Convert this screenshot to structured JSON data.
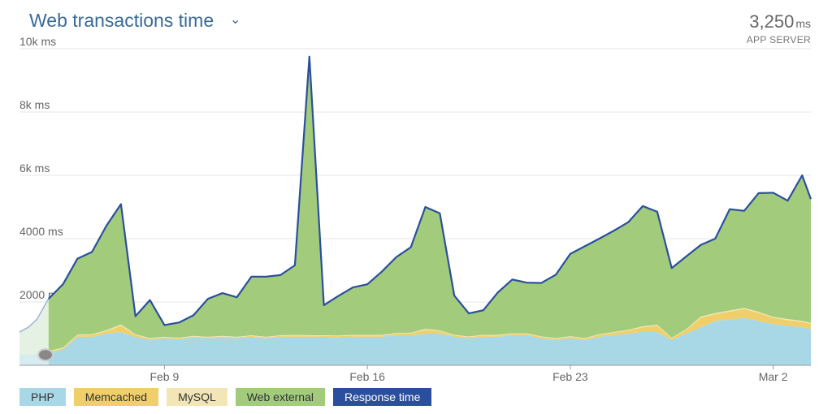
{
  "header": {
    "title": "Web transactions time",
    "caret": "⌄",
    "summary_value": "3,250",
    "summary_unit": "ms",
    "summary_label": "APP SERVER"
  },
  "colors": {
    "php": "#a8d8e6",
    "memcached": "#f0cf6a",
    "mysql": "#f3e6b6",
    "web_external": "#a2cc7c",
    "response_time": "#2b4f9e",
    "grid": "#e6e6e6"
  },
  "chart_data": {
    "type": "area",
    "title": "Web transactions time",
    "ylabel": "",
    "xlabel": "",
    "ylim": [
      0,
      10000
    ],
    "y_ticks": [
      {
        "value": 2000,
        "label": "2000 ms"
      },
      {
        "value": 4000,
        "label": "4000 ms"
      },
      {
        "value": 6000,
        "label": "6k ms"
      },
      {
        "value": 8000,
        "label": "8k ms"
      },
      {
        "value": 10000,
        "label": "10k ms"
      }
    ],
    "x_ticks": [
      {
        "value": 9,
        "label": "Feb 9"
      },
      {
        "value": 16,
        "label": "Feb 16"
      },
      {
        "value": 23,
        "label": "Feb 23"
      },
      {
        "value": 30,
        "label": "Mar 2"
      }
    ],
    "stacked": true,
    "grid": true,
    "legend_position": "bottom",
    "series": [
      {
        "name": "PHP",
        "color_key": "php",
        "points": [
          [
            5.0,
            400
          ],
          [
            5.5,
            500
          ],
          [
            6.0,
            900
          ],
          [
            6.5,
            900
          ],
          [
            7.0,
            1000
          ],
          [
            7.5,
            1050
          ],
          [
            8.0,
            900
          ],
          [
            8.5,
            800
          ],
          [
            9.0,
            850
          ],
          [
            9.5,
            820
          ],
          [
            10.0,
            880
          ],
          [
            10.5,
            850
          ],
          [
            11.0,
            880
          ],
          [
            11.5,
            850
          ],
          [
            12.0,
            900
          ],
          [
            12.5,
            850
          ],
          [
            13.0,
            900
          ],
          [
            13.5,
            900
          ],
          [
            14.0,
            900
          ],
          [
            14.5,
            900
          ],
          [
            15.0,
            880
          ],
          [
            15.5,
            900
          ],
          [
            16.0,
            900
          ],
          [
            16.5,
            900
          ],
          [
            17.0,
            950
          ],
          [
            17.5,
            950
          ],
          [
            18.0,
            1000
          ],
          [
            18.5,
            1000
          ],
          [
            19.0,
            900
          ],
          [
            19.5,
            850
          ],
          [
            20.0,
            900
          ],
          [
            20.5,
            900
          ],
          [
            21.0,
            950
          ],
          [
            21.5,
            950
          ],
          [
            22.0,
            850
          ],
          [
            22.5,
            800
          ],
          [
            23.0,
            850
          ],
          [
            23.5,
            800
          ],
          [
            24.0,
            900
          ],
          [
            24.5,
            950
          ],
          [
            25.0,
            1000
          ],
          [
            25.5,
            1050
          ],
          [
            26.0,
            1050
          ],
          [
            26.5,
            800
          ],
          [
            27.0,
            1000
          ],
          [
            27.5,
            1200
          ],
          [
            28.0,
            1400
          ],
          [
            28.5,
            1450
          ],
          [
            29.0,
            1500
          ],
          [
            29.5,
            1400
          ],
          [
            30.0,
            1300
          ],
          [
            30.5,
            1250
          ],
          [
            31.0,
            1200
          ],
          [
            31.3,
            1150
          ]
        ]
      },
      {
        "name": "Memcached",
        "color_key": "memcached",
        "points": [
          [
            5.0,
            30
          ],
          [
            5.5,
            40
          ],
          [
            6.0,
            50
          ],
          [
            6.5,
            60
          ],
          [
            7.0,
            80
          ],
          [
            7.5,
            200
          ],
          [
            8.0,
            60
          ],
          [
            8.5,
            40
          ],
          [
            9.0,
            30
          ],
          [
            9.5,
            30
          ],
          [
            10.0,
            30
          ],
          [
            10.5,
            30
          ],
          [
            11.0,
            30
          ],
          [
            11.5,
            30
          ],
          [
            12.0,
            30
          ],
          [
            12.5,
            30
          ],
          [
            13.0,
            30
          ],
          [
            13.5,
            40
          ],
          [
            14.0,
            30
          ],
          [
            14.5,
            30
          ],
          [
            15.0,
            40
          ],
          [
            15.5,
            40
          ],
          [
            16.0,
            40
          ],
          [
            16.5,
            40
          ],
          [
            17.0,
            50
          ],
          [
            17.5,
            60
          ],
          [
            18.0,
            120
          ],
          [
            18.5,
            80
          ],
          [
            19.0,
            40
          ],
          [
            19.5,
            40
          ],
          [
            20.0,
            40
          ],
          [
            20.5,
            40
          ],
          [
            21.0,
            40
          ],
          [
            21.5,
            40
          ],
          [
            22.0,
            40
          ],
          [
            22.5,
            40
          ],
          [
            23.0,
            50
          ],
          [
            23.5,
            40
          ],
          [
            24.0,
            60
          ],
          [
            24.5,
            80
          ],
          [
            25.0,
            100
          ],
          [
            25.5,
            150
          ],
          [
            26.0,
            200
          ],
          [
            26.5,
            50
          ],
          [
            27.0,
            120
          ],
          [
            27.5,
            300
          ],
          [
            28.0,
            220
          ],
          [
            28.5,
            250
          ],
          [
            29.0,
            280
          ],
          [
            29.5,
            260
          ],
          [
            30.0,
            200
          ],
          [
            30.5,
            180
          ],
          [
            31.0,
            170
          ],
          [
            31.3,
            160
          ]
        ]
      },
      {
        "name": "MySQL",
        "color_key": "mysql",
        "points": [
          [
            5.0,
            20
          ],
          [
            5.5,
            20
          ],
          [
            6.0,
            20
          ],
          [
            6.5,
            20
          ],
          [
            7.0,
            30
          ],
          [
            7.5,
            40
          ],
          [
            8.0,
            20
          ],
          [
            8.5,
            20
          ],
          [
            9.0,
            20
          ],
          [
            9.5,
            20
          ],
          [
            10.0,
            20
          ],
          [
            10.5,
            20
          ],
          [
            11.0,
            20
          ],
          [
            11.5,
            20
          ],
          [
            12.0,
            20
          ],
          [
            12.5,
            20
          ],
          [
            13.0,
            20
          ],
          [
            13.5,
            20
          ],
          [
            14.0,
            20
          ],
          [
            14.5,
            20
          ],
          [
            15.0,
            20
          ],
          [
            15.5,
            20
          ],
          [
            16.0,
            20
          ],
          [
            16.5,
            20
          ],
          [
            17.0,
            20
          ],
          [
            17.5,
            20
          ],
          [
            18.0,
            30
          ],
          [
            18.5,
            20
          ],
          [
            19.0,
            20
          ],
          [
            19.5,
            20
          ],
          [
            20.0,
            20
          ],
          [
            20.5,
            20
          ],
          [
            21.0,
            20
          ],
          [
            21.5,
            20
          ],
          [
            22.0,
            20
          ],
          [
            22.5,
            20
          ],
          [
            23.0,
            20
          ],
          [
            23.5,
            20
          ],
          [
            24.0,
            20
          ],
          [
            24.5,
            20
          ],
          [
            25.0,
            20
          ],
          [
            25.5,
            30
          ],
          [
            26.0,
            30
          ],
          [
            26.5,
            20
          ],
          [
            27.0,
            20
          ],
          [
            27.5,
            40
          ],
          [
            28.0,
            30
          ],
          [
            28.5,
            30
          ],
          [
            29.0,
            30
          ],
          [
            29.5,
            30
          ],
          [
            30.0,
            30
          ],
          [
            30.5,
            30
          ],
          [
            31.0,
            30
          ],
          [
            31.3,
            30
          ]
        ]
      },
      {
        "name": "Web external",
        "color_key": "web_external",
        "points": [
          [
            5.0,
            1650
          ],
          [
            5.5,
            2000
          ],
          [
            6.0,
            2400
          ],
          [
            6.5,
            2600
          ],
          [
            7.0,
            3300
          ],
          [
            7.5,
            3800
          ],
          [
            8.0,
            570
          ],
          [
            8.5,
            1200
          ],
          [
            9.0,
            370
          ],
          [
            9.5,
            480
          ],
          [
            10.0,
            650
          ],
          [
            10.5,
            1200
          ],
          [
            11.0,
            1350
          ],
          [
            11.5,
            1250
          ],
          [
            12.0,
            1850
          ],
          [
            12.5,
            1900
          ],
          [
            13.0,
            1900
          ],
          [
            13.5,
            2200
          ],
          [
            14.0,
            8800
          ],
          [
            14.5,
            950
          ],
          [
            15.0,
            1240
          ],
          [
            15.5,
            1500
          ],
          [
            16.0,
            1600
          ],
          [
            16.5,
            2000
          ],
          [
            17.0,
            2400
          ],
          [
            17.5,
            2700
          ],
          [
            18.0,
            3850
          ],
          [
            18.5,
            3700
          ],
          [
            19.0,
            1240
          ],
          [
            19.5,
            730
          ],
          [
            20.0,
            780
          ],
          [
            20.5,
            1340
          ],
          [
            21.0,
            1700
          ],
          [
            21.5,
            1600
          ],
          [
            22.0,
            1690
          ],
          [
            22.5,
            2000
          ],
          [
            23.0,
            2600
          ],
          [
            23.5,
            2900
          ],
          [
            24.0,
            3020
          ],
          [
            24.5,
            3200
          ],
          [
            25.0,
            3400
          ],
          [
            25.5,
            3800
          ],
          [
            26.0,
            3570
          ],
          [
            26.5,
            2200
          ],
          [
            27.0,
            2300
          ],
          [
            27.5,
            2260
          ],
          [
            28.0,
            2350
          ],
          [
            28.5,
            3200
          ],
          [
            29.0,
            3070
          ],
          [
            29.5,
            3750
          ],
          [
            30.0,
            3920
          ],
          [
            30.5,
            3740
          ],
          [
            31.0,
            4600
          ],
          [
            31.3,
            3910
          ]
        ]
      },
      {
        "name": "Response time",
        "color_key": "response_time",
        "line": true,
        "points": [
          [
            5.0,
            2100
          ],
          [
            5.5,
            2560
          ],
          [
            6.0,
            3370
          ],
          [
            6.5,
            3580
          ],
          [
            7.0,
            4410
          ],
          [
            7.5,
            5090
          ],
          [
            8.0,
            1550
          ],
          [
            8.5,
            2060
          ],
          [
            9.0,
            1270
          ],
          [
            9.5,
            1350
          ],
          [
            10.0,
            1580
          ],
          [
            10.5,
            2100
          ],
          [
            11.0,
            2280
          ],
          [
            11.5,
            2150
          ],
          [
            12.0,
            2800
          ],
          [
            12.5,
            2800
          ],
          [
            13.0,
            2850
          ],
          [
            13.5,
            3160
          ],
          [
            14.0,
            9750
          ],
          [
            14.5,
            1900
          ],
          [
            15.0,
            2190
          ],
          [
            15.5,
            2460
          ],
          [
            16.0,
            2560
          ],
          [
            16.5,
            2960
          ],
          [
            17.0,
            3420
          ],
          [
            17.5,
            3730
          ],
          [
            18.0,
            5000
          ],
          [
            18.5,
            4800
          ],
          [
            19.0,
            2200
          ],
          [
            19.5,
            1640
          ],
          [
            20.0,
            1740
          ],
          [
            20.5,
            2300
          ],
          [
            21.0,
            2710
          ],
          [
            21.5,
            2610
          ],
          [
            22.0,
            2600
          ],
          [
            22.5,
            2860
          ],
          [
            23.0,
            3520
          ],
          [
            23.5,
            3760
          ],
          [
            24.0,
            4000
          ],
          [
            24.5,
            4250
          ],
          [
            25.0,
            4520
          ],
          [
            25.5,
            5030
          ],
          [
            26.0,
            4850
          ],
          [
            26.5,
            3070
          ],
          [
            27.0,
            3440
          ],
          [
            27.5,
            3800
          ],
          [
            28.0,
            4000
          ],
          [
            28.5,
            4930
          ],
          [
            29.0,
            4880
          ],
          [
            29.5,
            5440
          ],
          [
            30.0,
            5450
          ],
          [
            30.5,
            5200
          ],
          [
            31.0,
            6000
          ],
          [
            31.3,
            5250
          ]
        ]
      }
    ],
    "selection_overlay": {
      "x_start": 4.0,
      "x_end": 5.0
    }
  },
  "legend": [
    {
      "label": "PHP",
      "color_key": "php",
      "dark": false
    },
    {
      "label": "Memcached",
      "color_key": "memcached",
      "dark": false
    },
    {
      "label": "MySQL",
      "color_key": "mysql",
      "dark": false
    },
    {
      "label": "Web external",
      "color_key": "web_external",
      "dark": false
    },
    {
      "label": "Response time",
      "color_key": "response_time",
      "dark": true
    }
  ]
}
